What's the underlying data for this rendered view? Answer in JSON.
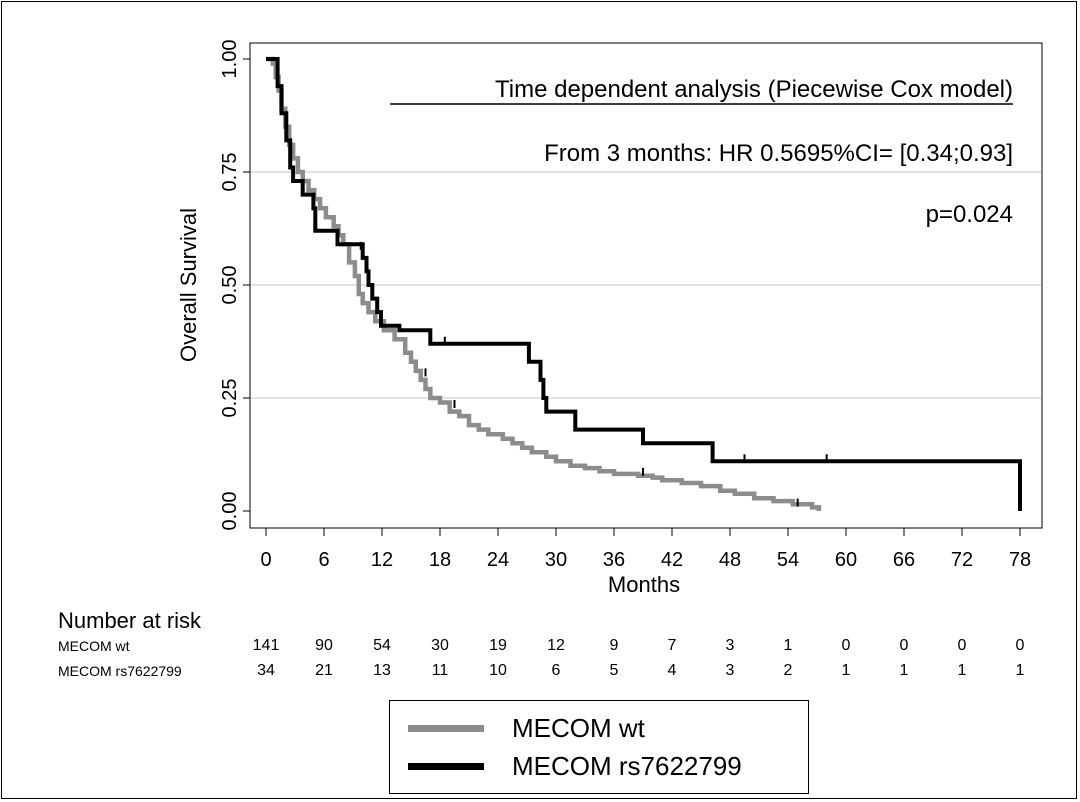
{
  "chart_data": {
    "type": "line",
    "subtype": "kaplan-meier-step",
    "xlabel": "Months",
    "ylabel": "Overall Survival",
    "xlim": [
      0,
      78
    ],
    "ylim": [
      0,
      1
    ],
    "xticks": [
      "0",
      "6",
      "12",
      "18",
      "24",
      "30",
      "36",
      "42",
      "48",
      "54",
      "60",
      "66",
      "72",
      "78"
    ],
    "yticks": [
      "0.00",
      "0.25",
      "0.50",
      "0.75",
      "1.00"
    ],
    "grid": "horizontal",
    "annotations": [
      "Time dependent analysis (Piecewise Cox model)",
      "From 3 months: HR 0.5695%CI=  [0.34;0.93]",
      "p=0.024"
    ],
    "series": [
      {
        "name": "MECOM wt",
        "color": "#8c8c8c",
        "points": [
          [
            0,
            1.0
          ],
          [
            0.7,
            0.99
          ],
          [
            1.0,
            0.96
          ],
          [
            1.3,
            0.93
          ],
          [
            1.6,
            0.89
          ],
          [
            2.0,
            0.85
          ],
          [
            2.4,
            0.81
          ],
          [
            2.8,
            0.78
          ],
          [
            3.3,
            0.75
          ],
          [
            3.8,
            0.73
          ],
          [
            4.4,
            0.71
          ],
          [
            5.0,
            0.69
          ],
          [
            5.6,
            0.67
          ],
          [
            6.2,
            0.65
          ],
          [
            7.0,
            0.63
          ],
          [
            7.5,
            0.61
          ],
          [
            8.0,
            0.59
          ],
          [
            8.6,
            0.55
          ],
          [
            9.2,
            0.52
          ],
          [
            9.6,
            0.48
          ],
          [
            10.0,
            0.46
          ],
          [
            10.6,
            0.44
          ],
          [
            11.3,
            0.42
          ],
          [
            12.2,
            0.4
          ],
          [
            13.3,
            0.38
          ],
          [
            14.4,
            0.35
          ],
          [
            15.0,
            0.33
          ],
          [
            15.5,
            0.31
          ],
          [
            16.0,
            0.29
          ],
          [
            16.5,
            0.27
          ],
          [
            17.0,
            0.25
          ],
          [
            18.0,
            0.24
          ],
          [
            19.0,
            0.22
          ],
          [
            20.0,
            0.21
          ],
          [
            21.0,
            0.19
          ],
          [
            22.0,
            0.18
          ],
          [
            23.0,
            0.17
          ],
          [
            24.5,
            0.16
          ],
          [
            25.5,
            0.15
          ],
          [
            26.5,
            0.14
          ],
          [
            27.5,
            0.13
          ],
          [
            29.0,
            0.12
          ],
          [
            30.0,
            0.11
          ],
          [
            31.5,
            0.1
          ],
          [
            33.0,
            0.095
          ],
          [
            34.5,
            0.088
          ],
          [
            36.0,
            0.082
          ],
          [
            38.5,
            0.078
          ],
          [
            40.0,
            0.074
          ],
          [
            41.0,
            0.068
          ],
          [
            43.0,
            0.062
          ],
          [
            45.0,
            0.055
          ],
          [
            47.0,
            0.045
          ],
          [
            48.5,
            0.038
          ],
          [
            50.5,
            0.028
          ],
          [
            52.5,
            0.022
          ],
          [
            54.5,
            0.015
          ],
          [
            56.5,
            0.008
          ],
          [
            57.2,
            0.0
          ]
        ],
        "censor": [
          [
            16.5,
            0.3
          ],
          [
            19.5,
            0.23
          ],
          [
            39.0,
            0.08
          ],
          [
            55.0,
            0.012
          ]
        ]
      },
      {
        "name": "MECOM rs7622799",
        "color": "#000000",
        "points": [
          [
            0,
            1.0
          ],
          [
            0.5,
            1.0
          ],
          [
            1.2,
            0.94
          ],
          [
            1.6,
            0.88
          ],
          [
            2.1,
            0.82
          ],
          [
            2.5,
            0.76
          ],
          [
            2.8,
            0.73
          ],
          [
            3.8,
            0.7
          ],
          [
            4.9,
            0.67
          ],
          [
            5.1,
            0.62
          ],
          [
            7.2,
            0.62
          ],
          [
            7.4,
            0.59
          ],
          [
            9.8,
            0.59
          ],
          [
            10.0,
            0.56
          ],
          [
            10.4,
            0.53
          ],
          [
            10.6,
            0.5
          ],
          [
            11.0,
            0.47
          ],
          [
            11.5,
            0.44
          ],
          [
            11.9,
            0.41
          ],
          [
            13.6,
            0.41
          ],
          [
            13.8,
            0.4
          ],
          [
            16.8,
            0.4
          ],
          [
            17.0,
            0.37
          ],
          [
            27.0,
            0.37
          ],
          [
            27.2,
            0.33
          ],
          [
            28.2,
            0.33
          ],
          [
            28.4,
            0.29
          ],
          [
            28.7,
            0.25
          ],
          [
            29.0,
            0.22
          ],
          [
            31.8,
            0.22
          ],
          [
            32.0,
            0.18
          ],
          [
            38.8,
            0.18
          ],
          [
            39.0,
            0.15
          ],
          [
            46.0,
            0.15
          ],
          [
            46.2,
            0.11
          ],
          [
            78.0,
            0.11
          ],
          [
            78.0,
            0.0
          ]
        ],
        "censor": [
          [
            9.8,
            0.58
          ],
          [
            18.5,
            0.37
          ],
          [
            49.5,
            0.11
          ],
          [
            58.0,
            0.11
          ]
        ]
      }
    ]
  },
  "risk_table": {
    "title": "Number at risk",
    "rows": [
      {
        "label": "MECOM wt",
        "values": [
          "141",
          "90",
          "54",
          "30",
          "19",
          "12",
          "9",
          "7",
          "3",
          "1",
          "0",
          "0",
          "0",
          "0"
        ]
      },
      {
        "label": "MECOM rs7622799",
        "values": [
          "34",
          "21",
          "13",
          "11",
          "10",
          "6",
          "5",
          "4",
          "3",
          "2",
          "1",
          "1",
          "1",
          "1"
        ]
      }
    ]
  },
  "legend": {
    "items": [
      {
        "label": "MECOM wt",
        "color": "#8c8c8c"
      },
      {
        "label": "MECOM rs7622799",
        "color": "#000000"
      }
    ]
  }
}
